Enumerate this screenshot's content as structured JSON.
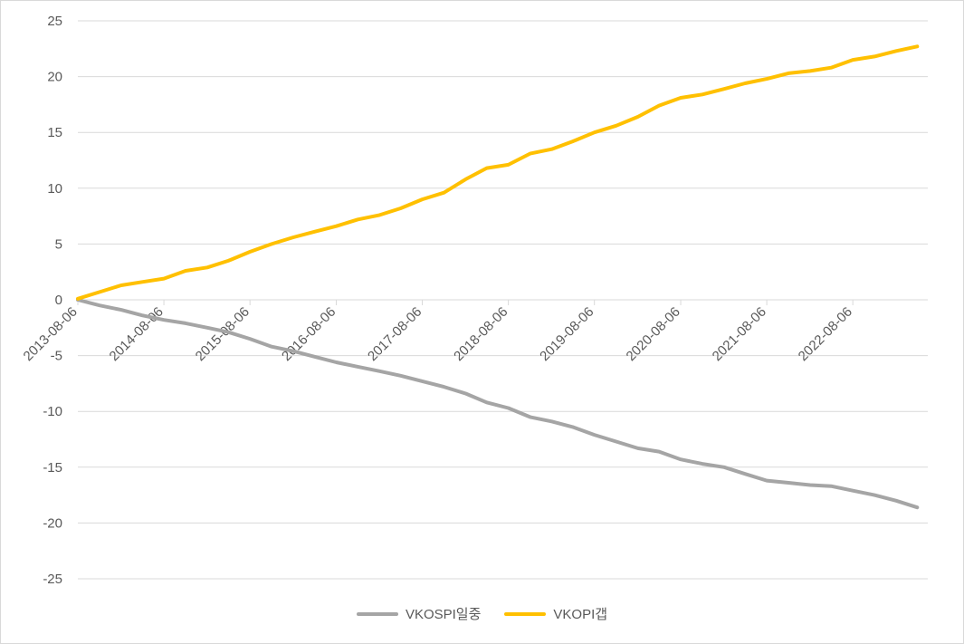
{
  "chart_data": {
    "type": "line",
    "title": "",
    "xlabel": "",
    "ylabel": "",
    "ylim": [
      -25,
      25
    ],
    "yticks": [
      -25,
      -20,
      -15,
      -10,
      -5,
      0,
      5,
      10,
      15,
      20,
      25
    ],
    "x_tick_labels": [
      "2013-08-06",
      "2014-08-06",
      "2015-08-06",
      "2016-08-06",
      "2017-08-06",
      "2018-08-06",
      "2019-08-06",
      "2020-08-06",
      "2021-08-06",
      "2022-08-06"
    ],
    "x": [
      "2013-08-06",
      "2013-11-06",
      "2014-02-06",
      "2014-05-06",
      "2014-08-06",
      "2014-11-06",
      "2015-02-06",
      "2015-05-06",
      "2015-08-06",
      "2015-11-06",
      "2016-02-06",
      "2016-05-06",
      "2016-08-06",
      "2016-11-06",
      "2017-02-06",
      "2017-05-06",
      "2017-08-06",
      "2017-11-06",
      "2018-02-06",
      "2018-05-06",
      "2018-08-06",
      "2018-11-06",
      "2019-02-06",
      "2019-05-06",
      "2019-08-06",
      "2019-11-06",
      "2020-02-06",
      "2020-05-06",
      "2020-08-06",
      "2020-11-06",
      "2021-02-06",
      "2021-05-06",
      "2021-08-06",
      "2021-11-06",
      "2022-02-06",
      "2022-05-06",
      "2022-08-06",
      "2022-11-06",
      "2023-02-06",
      "2023-05-06"
    ],
    "series": [
      {
        "name": "VKOSPI일중",
        "color": "#A5A5A5",
        "values": [
          0,
          -0.5,
          -0.9,
          -1.4,
          -1.8,
          -2.1,
          -2.5,
          -2.9,
          -3.5,
          -4.2,
          -4.6,
          -5.1,
          -5.6,
          -6.0,
          -6.4,
          -6.8,
          -7.3,
          -7.8,
          -8.4,
          -9.2,
          -9.7,
          -10.5,
          -10.9,
          -11.4,
          -12.1,
          -12.7,
          -13.3,
          -13.6,
          -14.3,
          -14.7,
          -15.0,
          -15.6,
          -16.2,
          -16.4,
          -16.6,
          -16.7,
          -17.1,
          -17.5,
          -18.0,
          -18.6
        ]
      },
      {
        "name": "VKOPI갭",
        "color": "#FFC000",
        "values": [
          0.1,
          0.7,
          1.3,
          1.6,
          1.9,
          2.6,
          2.9,
          3.5,
          4.3,
          5.0,
          5.6,
          6.1,
          6.6,
          7.2,
          7.6,
          8.2,
          9.0,
          9.6,
          10.8,
          11.8,
          12.1,
          13.1,
          13.5,
          14.2,
          15.0,
          15.6,
          16.4,
          17.4,
          18.1,
          18.4,
          18.9,
          19.4,
          19.8,
          20.3,
          20.5,
          20.8,
          21.5,
          21.8,
          22.3,
          22.7
        ]
      }
    ],
    "grid": true,
    "legend": "bottom"
  }
}
